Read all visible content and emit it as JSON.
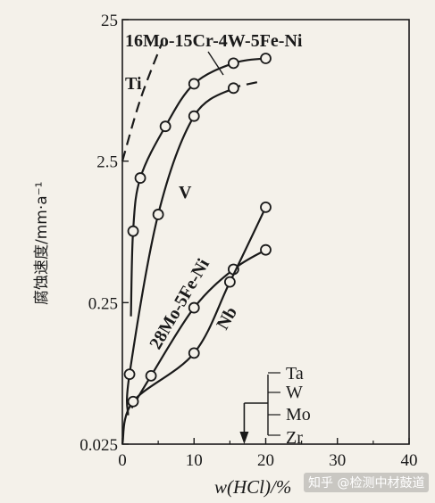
{
  "chart_data": {
    "type": "line",
    "xlabel": "w(HCl)/%",
    "ylabel": "腐蚀速度/mm·a⁻¹",
    "x_ticks": [
      "0",
      "10",
      "20",
      "30",
      "40"
    ],
    "xlim": [
      0,
      40
    ],
    "y_scale": "log",
    "y_ticks": [
      "0.025",
      "0.25",
      "2.5",
      "25"
    ],
    "ylim": [
      0.025,
      25
    ],
    "series": [
      {
        "name": "Ti",
        "style": "dashed",
        "marker": "none",
        "x": [
          0,
          2.5,
          5.5
        ],
        "y": [
          2.5,
          6.8,
          17
        ]
      },
      {
        "name": "16Mo-15Cr-4W-5Fe-Ni",
        "style": "solid",
        "marker": "circle",
        "x": [
          1.5,
          2.5,
          6,
          10,
          15.5,
          20
        ],
        "y": [
          0.8,
          1.9,
          4.4,
          8.8,
          12.3,
          13.3
        ]
      },
      {
        "name": "",
        "style": "dashed",
        "marker": "none",
        "x": [
          15,
          19.5
        ],
        "y": [
          8.2,
          9.2
        ]
      },
      {
        "name": "V",
        "style": "solid",
        "marker": "circle",
        "x": [
          1,
          5,
          10,
          15.5
        ],
        "y": [
          0.078,
          1.05,
          5.2,
          8.2
        ]
      },
      {
        "name": "28Mo-5Fe-Ni",
        "style": "solid",
        "marker": "circle",
        "x": [
          4,
          10,
          15.5,
          20
        ],
        "y": [
          0.076,
          0.23,
          0.43,
          0.59
        ]
      },
      {
        "name": "Nb",
        "style": "solid",
        "marker": "circle",
        "x": [
          1.5,
          10,
          15,
          20
        ],
        "y": [
          0.05,
          0.11,
          0.35,
          1.18
        ]
      }
    ],
    "annotations": {
      "group_labels": [
        "Ta",
        "W",
        "Mo",
        "Zr"
      ],
      "arrow_x": 17
    }
  },
  "watermark": "知乎 @检测中材鼓道",
  "colors": {
    "background": "#f4f1ea",
    "ink": "#1a1a1a"
  }
}
